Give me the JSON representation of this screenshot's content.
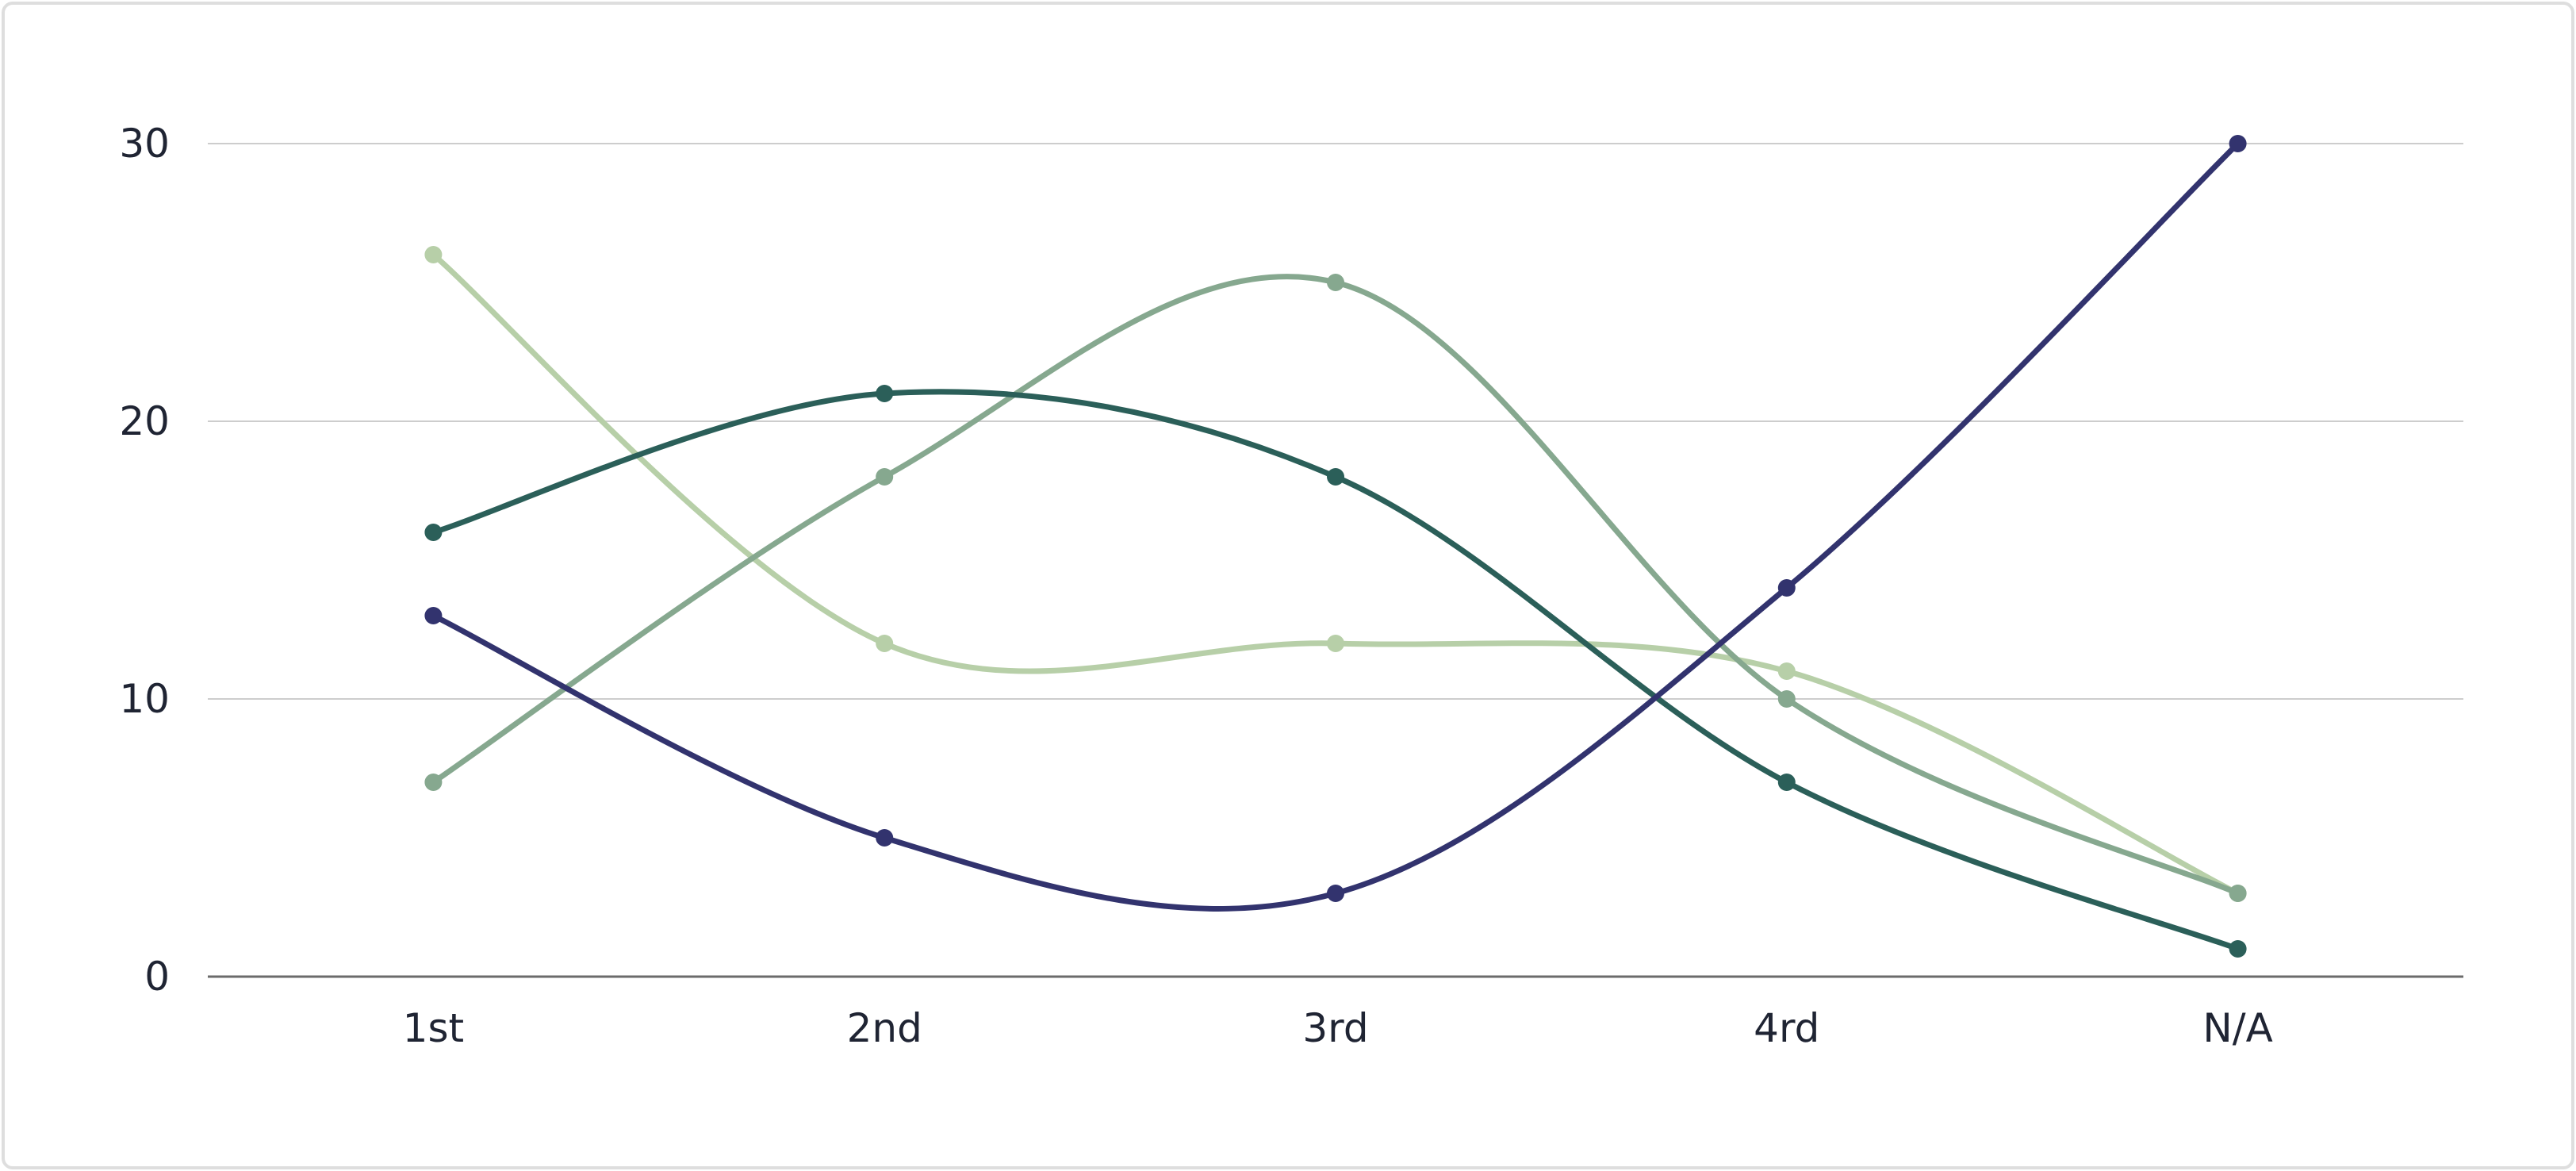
{
  "chart_data": {
    "type": "line",
    "categories": [
      "1st",
      "2nd",
      "3rd",
      "4rd",
      "N/A"
    ],
    "y_ticks": [
      0,
      10,
      20,
      30
    ],
    "ylim": [
      0,
      30
    ],
    "grid": true,
    "legend": "none",
    "series": [
      {
        "color": "#b7cfa8",
        "values": [
          26,
          12,
          12,
          11,
          3
        ]
      },
      {
        "color": "#86a88f",
        "values": [
          7,
          18,
          25,
          10,
          3
        ]
      },
      {
        "color": "#2b5f59",
        "values": [
          16,
          21,
          18,
          7,
          1
        ]
      },
      {
        "color": "#32336e",
        "values": [
          13,
          5,
          3,
          14,
          30
        ]
      }
    ],
    "colors": {
      "grid": "#cdcdcd",
      "axis": "#6b6b6b"
    }
  }
}
